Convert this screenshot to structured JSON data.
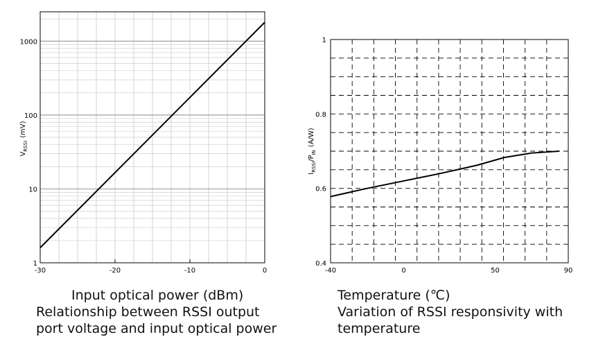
{
  "chart_data": [
    {
      "type": "line",
      "title": "Relationship between RSSI output port voltage and input optical power",
      "xlabel": "Input optical power (dBm)",
      "ylabel": "V_RSSI (mV)",
      "ylabel_main": "V",
      "ylabel_sub": "RSSI",
      "ylabel_unit": "(mV)",
      "xlim": [
        -30,
        0
      ],
      "ylim": [
        1,
        2500
      ],
      "yscale": "log",
      "grid": true,
      "x_ticks": [
        "-30",
        "-20",
        "-10",
        "0"
      ],
      "y_ticks": [
        "1",
        "10",
        "100",
        "1000"
      ],
      "series": [
        {
          "x": [
            -30,
            0
          ],
          "y": [
            1.6,
            1800
          ]
        }
      ]
    },
    {
      "type": "line",
      "title": "Variation of RSSI responsivity with temperature",
      "xlabel": "Temperature (℃)",
      "ylabel": "I_RSSI/P_IN (A/W)",
      "ylabel_i": "I",
      "ylabel_i_sub": "RSSI",
      "ylabel_p": "/P",
      "ylabel_p_sub": "IN",
      "ylabel_unit": "(A/W)",
      "xlim": [
        -40,
        90
      ],
      "ylim": [
        0.4,
        1.0
      ],
      "grid": "dashed",
      "x_ticks": [
        "-40",
        "0",
        "50",
        "90"
      ],
      "y_ticks": [
        "0.4",
        "0.6",
        "0.8",
        "1"
      ],
      "series": [
        {
          "x": [
            -40,
            -20,
            0,
            20,
            40,
            55,
            70,
            85
          ],
          "y": [
            0.578,
            0.6,
            0.62,
            0.64,
            0.662,
            0.683,
            0.695,
            0.7
          ]
        }
      ]
    }
  ]
}
